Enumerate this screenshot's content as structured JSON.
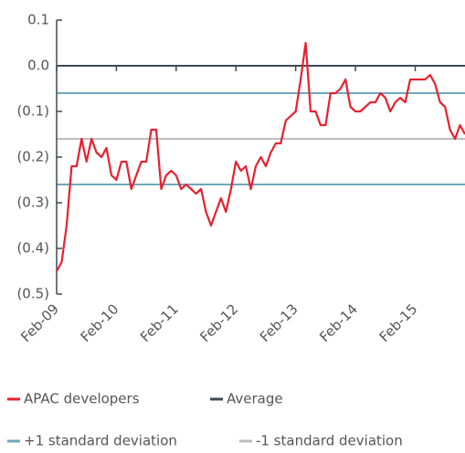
{
  "chart_data": {
    "type": "line",
    "categories": [
      "Feb-09",
      null,
      null,
      null,
      null,
      null,
      null,
      null,
      null,
      null,
      null,
      null,
      "Feb-10",
      null,
      null,
      null,
      null,
      null,
      null,
      null,
      null,
      null,
      null,
      null,
      "Feb-11",
      null,
      null,
      null,
      null,
      null,
      null,
      null,
      null,
      null,
      null,
      null,
      "Feb-12",
      null,
      null,
      null,
      null,
      null,
      null,
      null,
      null,
      null,
      null,
      null,
      "Feb-13",
      null,
      null,
      null,
      null,
      null,
      null,
      null,
      null,
      null,
      null,
      null,
      "Feb-14",
      null,
      null,
      null,
      null,
      null,
      null,
      null,
      null,
      null,
      null,
      null,
      "Feb-15",
      null,
      null,
      null,
      null,
      null,
      null,
      null,
      null,
      null,
      null
    ],
    "series": [
      {
        "name": "APAC developers",
        "color": "#e8202f",
        "values": [
          -0.45,
          -0.43,
          -0.35,
          -0.22,
          -0.22,
          -0.16,
          -0.21,
          -0.16,
          -0.19,
          -0.2,
          -0.18,
          -0.24,
          -0.25,
          -0.21,
          -0.21,
          -0.27,
          -0.24,
          -0.21,
          -0.21,
          -0.14,
          -0.14,
          -0.27,
          -0.24,
          -0.23,
          -0.24,
          -0.27,
          -0.26,
          -0.27,
          -0.28,
          -0.27,
          -0.32,
          -0.35,
          -0.32,
          -0.29,
          -0.32,
          -0.27,
          -0.21,
          -0.23,
          -0.22,
          -0.27,
          -0.22,
          -0.2,
          -0.22,
          -0.19,
          -0.17,
          -0.17,
          -0.12,
          -0.11,
          -0.1,
          -0.03,
          0.05,
          -0.1,
          -0.1,
          -0.13,
          -0.13,
          -0.06,
          -0.06,
          -0.05,
          -0.03,
          -0.09,
          -0.1,
          -0.1,
          -0.09,
          -0.08,
          -0.08,
          -0.06,
          -0.07,
          -0.1,
          -0.08,
          -0.07,
          -0.08,
          -0.03,
          -0.03,
          -0.03,
          -0.03,
          -0.02,
          -0.04,
          -0.08,
          -0.09,
          -0.14,
          -0.16,
          -0.13,
          -0.15
        ]
      }
    ],
    "legend": [
      {
        "name": "APAC developers",
        "color": "#e8202f"
      },
      {
        "name": "Average",
        "color": "#3d4a55"
      },
      {
        "name": "+1 standard deviation",
        "color": "#6fa8bd"
      },
      {
        "name": "-1 standard deviation",
        "color": "#bdbdbd"
      }
    ],
    "hlines": [
      {
        "value": -0.06,
        "color": "#6fa8bd"
      },
      {
        "value": -0.16,
        "color": "#bdbdbd"
      },
      {
        "value": -0.26,
        "color": "#6fa8bd"
      }
    ],
    "axis_color": "#3d4a55",
    "ylim": [
      -0.5,
      0.1
    ],
    "yticks": [
      0.1,
      {
        "value": 0,
        "label": "0.0"
      },
      {
        "value": -0.1,
        "label": "(0.1)"
      },
      {
        "value": -0.2,
        "label": "(0.2)"
      },
      {
        "value": -0.3,
        "label": "(0.3)"
      },
      {
        "value": -0.4,
        "label": "(0.4)"
      },
      {
        "value": -0.5,
        "label": "(0.5)"
      }
    ]
  }
}
